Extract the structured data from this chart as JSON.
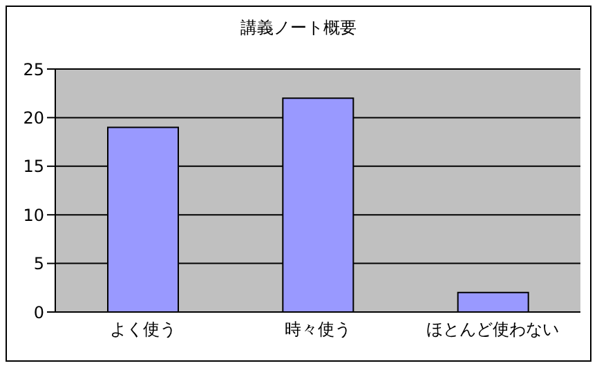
{
  "chart_data": {
    "type": "bar",
    "title": "講義ノート概要",
    "categories": [
      "よく使う",
      "時々使う",
      "ほとんど使わない"
    ],
    "values": [
      19,
      22,
      2
    ],
    "color": "#9999ff",
    "ylim": [
      0,
      25
    ],
    "yticks": [
      0,
      5,
      10,
      15,
      20,
      25
    ],
    "grid": "y"
  }
}
